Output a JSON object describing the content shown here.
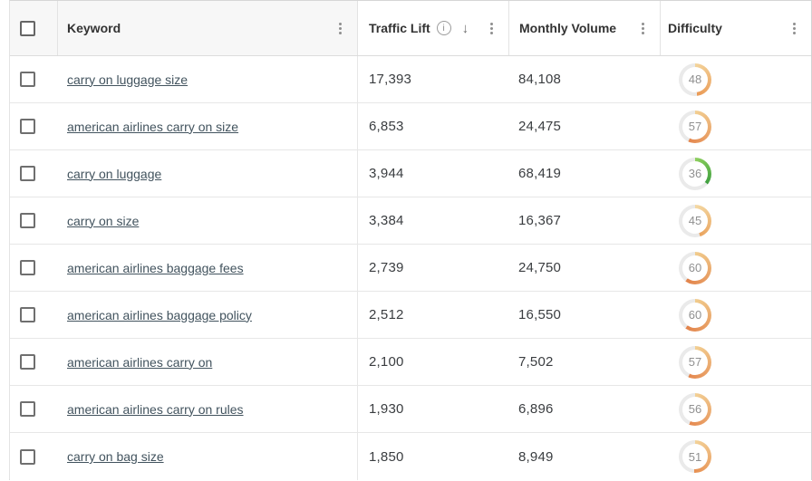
{
  "table": {
    "header": {
      "keyword": "Keyword",
      "traffic_lift": "Traffic Lift",
      "monthly_volume": "Monthly Volume",
      "difficulty": "Difficulty",
      "traffic_lift_sort": "desc",
      "sort_arrow_glyph": "↓",
      "info_glyph": "i"
    },
    "rows": [
      {
        "keyword": "carry on luggage size",
        "traffic_lift": "17,393",
        "monthly_volume": "84,108",
        "difficulty": {
          "value": 48,
          "color_start": "#f3d49c",
          "color_end": "#ea9a55"
        }
      },
      {
        "keyword": "american airlines carry on size",
        "traffic_lift": "6,853",
        "monthly_volume": "24,475",
        "difficulty": {
          "value": 57,
          "color_start": "#f2cf92",
          "color_end": "#e4874e"
        }
      },
      {
        "keyword": "carry on luggage",
        "traffic_lift": "3,944",
        "monthly_volume": "68,419",
        "difficulty": {
          "value": 36,
          "color_start": "#8fd05f",
          "color_end": "#3fa03f"
        }
      },
      {
        "keyword": "carry on size",
        "traffic_lift": "3,384",
        "monthly_volume": "16,367",
        "difficulty": {
          "value": 45,
          "color_start": "#f4d9a4",
          "color_end": "#eaa45e"
        }
      },
      {
        "keyword": "american airlines baggage fees",
        "traffic_lift": "2,739",
        "monthly_volume": "24,750",
        "difficulty": {
          "value": 60,
          "color_start": "#f1cc8d",
          "color_end": "#e2824a"
        }
      },
      {
        "keyword": "american airlines baggage policy",
        "traffic_lift": "2,512",
        "monthly_volume": "16,550",
        "difficulty": {
          "value": 60,
          "color_start": "#f1cc8d",
          "color_end": "#e2824a"
        }
      },
      {
        "keyword": "american airlines carry on",
        "traffic_lift": "2,100",
        "monthly_volume": "7,502",
        "difficulty": {
          "value": 57,
          "color_start": "#f2cf92",
          "color_end": "#e4874e"
        }
      },
      {
        "keyword": "american airlines carry on rules",
        "traffic_lift": "1,930",
        "monthly_volume": "6,896",
        "difficulty": {
          "value": 56,
          "color_start": "#f2d095",
          "color_end": "#e58950"
        }
      },
      {
        "keyword": "carry on bag size",
        "traffic_lift": "1,850",
        "monthly_volume": "8,949",
        "difficulty": {
          "value": 51,
          "color_start": "#f3d298",
          "color_end": "#e79052"
        }
      }
    ]
  },
  "colors": {
    "donut_track": "#eaeaea",
    "link": "#42535e",
    "accent_orange": "#e8914f",
    "accent_green": "#3fa03f",
    "header_bg": "#f7f7f7"
  }
}
